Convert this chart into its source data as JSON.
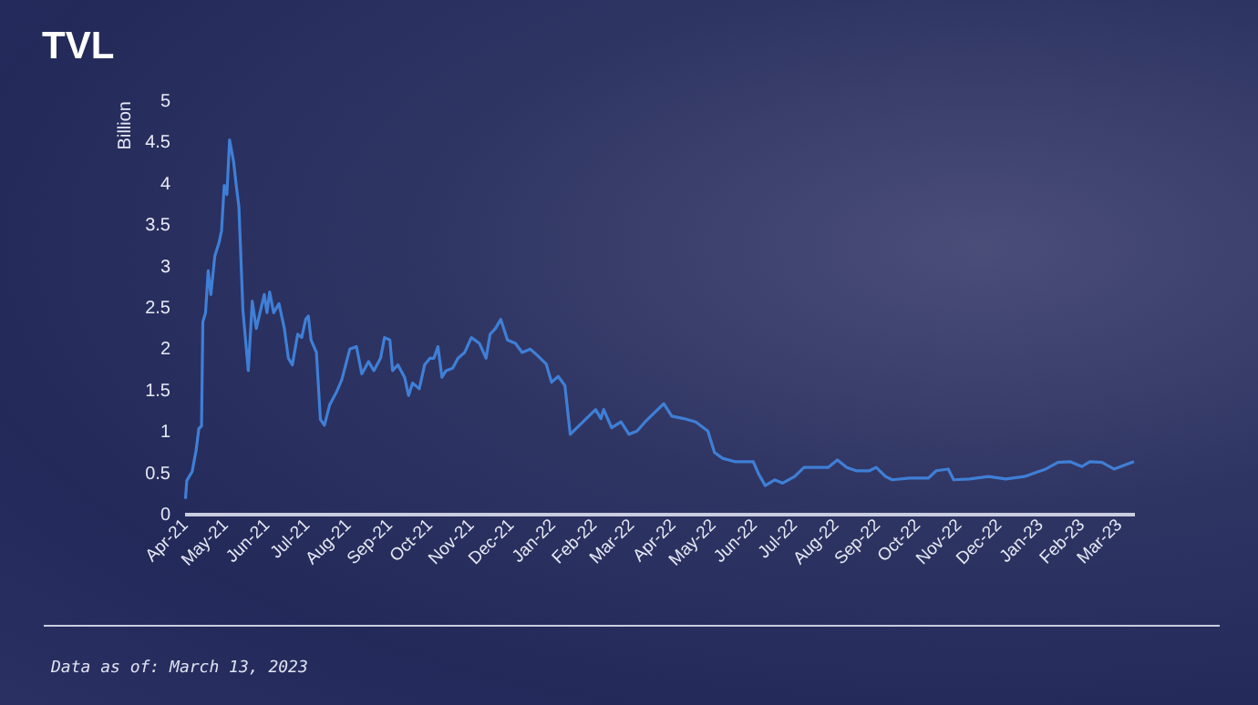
{
  "chart_data": {
    "type": "line",
    "title": "TVL",
    "ylabel": "Billion",
    "annotations": [
      "Data as of: March 13, 2023"
    ],
    "xlim": [
      "2021-04-01",
      "2023-03-13"
    ],
    "xticks": [
      {
        "value": "2021-04-01",
        "label": "Apr-21"
      },
      {
        "value": "2021-05-01",
        "label": "May-21"
      },
      {
        "value": "2021-06-01",
        "label": "Jun-21"
      },
      {
        "value": "2021-07-01",
        "label": "Jul-21"
      },
      {
        "value": "2021-08-01",
        "label": "Aug-21"
      },
      {
        "value": "2021-09-01",
        "label": "Sep-21"
      },
      {
        "value": "2021-10-01",
        "label": "Oct-21"
      },
      {
        "value": "2021-11-01",
        "label": "Nov-21"
      },
      {
        "value": "2021-12-01",
        "label": "Dec-21"
      },
      {
        "value": "2022-01-01",
        "label": "Jan-22"
      },
      {
        "value": "2022-02-01",
        "label": "Feb-22"
      },
      {
        "value": "2022-03-01",
        "label": "Mar-22"
      },
      {
        "value": "2022-04-01",
        "label": "Apr-22"
      },
      {
        "value": "2022-05-01",
        "label": "May-22"
      },
      {
        "value": "2022-06-01",
        "label": "Jun-22"
      },
      {
        "value": "2022-07-01",
        "label": "Jul-22"
      },
      {
        "value": "2022-08-01",
        "label": "Aug-22"
      },
      {
        "value": "2022-09-01",
        "label": "Sep-22"
      },
      {
        "value": "2022-10-01",
        "label": "Oct-22"
      },
      {
        "value": "2022-11-01",
        "label": "Nov-22"
      },
      {
        "value": "2022-12-01",
        "label": "Dec-22"
      },
      {
        "value": "2023-01-01",
        "label": "Jan-23"
      },
      {
        "value": "2023-02-01",
        "label": "Feb-23"
      },
      {
        "value": "2023-03-01",
        "label": "Mar-23"
      }
    ],
    "ylim": [
      0,
      5
    ],
    "yticks": [
      0,
      0.5,
      1,
      1.5,
      2,
      2.5,
      3,
      3.5,
      4,
      4.5,
      5
    ],
    "grid": false,
    "marker": "none",
    "line_style": "solid",
    "x": [
      "2021-04-02",
      "2021-04-03",
      "2021-04-07",
      "2021-04-10",
      "2021-04-12",
      "2021-04-14",
      "2021-04-15",
      "2021-04-17",
      "2021-04-19",
      "2021-04-21",
      "2021-04-24",
      "2021-04-27",
      "2021-04-29",
      "2021-05-01",
      "2021-05-03",
      "2021-05-05",
      "2021-05-08",
      "2021-05-10",
      "2021-05-12",
      "2021-05-15",
      "2021-05-19",
      "2021-05-22",
      "2021-05-25",
      "2021-05-31",
      "2021-06-02",
      "2021-06-04",
      "2021-06-07",
      "2021-06-11",
      "2021-06-15",
      "2021-06-18",
      "2021-06-21",
      "2021-06-25",
      "2021-06-28",
      "2021-07-01",
      "2021-07-03",
      "2021-07-05",
      "2021-07-09",
      "2021-07-12",
      "2021-07-15",
      "2021-07-19",
      "2021-07-24",
      "2021-07-28",
      "2021-08-03",
      "2021-08-08",
      "2021-08-12",
      "2021-08-17",
      "2021-08-21",
      "2021-08-26",
      "2021-08-29",
      "2021-09-02",
      "2021-09-04",
      "2021-09-08",
      "2021-09-13",
      "2021-09-16",
      "2021-09-19",
      "2021-09-24",
      "2021-09-28",
      "2021-10-02",
      "2021-10-05",
      "2021-10-08",
      "2021-10-11",
      "2021-10-14",
      "2021-10-19",
      "2021-10-23",
      "2021-10-28",
      "2021-11-02",
      "2021-11-08",
      "2021-11-13",
      "2021-11-16",
      "2021-11-20",
      "2021-11-24",
      "2021-11-29",
      "2021-12-05",
      "2021-12-10",
      "2021-12-16",
      "2021-12-21",
      "2021-12-28",
      "2022-01-01",
      "2022-01-06",
      "2022-01-11",
      "2022-01-15",
      "2022-01-20",
      "2022-01-27",
      "2022-02-03",
      "2022-02-07",
      "2022-02-09",
      "2022-02-15",
      "2022-02-22",
      "2022-02-28",
      "2022-03-06",
      "2022-03-12",
      "2022-03-19",
      "2022-03-26",
      "2022-04-01",
      "2022-04-10",
      "2022-04-19",
      "2022-04-28",
      "2022-05-03",
      "2022-05-09",
      "2022-05-18",
      "2022-05-25",
      "2022-06-01",
      "2022-06-05",
      "2022-06-10",
      "2022-06-17",
      "2022-06-23",
      "2022-07-02",
      "2022-07-09",
      "2022-07-18",
      "2022-07-27",
      "2022-08-03",
      "2022-08-10",
      "2022-08-17",
      "2022-08-27",
      "2022-09-01",
      "2022-09-08",
      "2022-09-13",
      "2022-09-26",
      "2022-10-10",
      "2022-10-16",
      "2022-10-25",
      "2022-10-29",
      "2022-11-10",
      "2022-11-24",
      "2022-12-07",
      "2022-12-21",
      "2022-12-30",
      "2023-01-06",
      "2023-01-15",
      "2023-01-24",
      "2023-02-02",
      "2023-02-08",
      "2023-02-17",
      "2023-02-26",
      "2023-03-13"
    ],
    "series": [
      {
        "color": "#3f7fd6",
        "values": [
          0.18,
          0.4,
          0.51,
          0.77,
          1.03,
          1.06,
          2.32,
          2.43,
          2.94,
          2.65,
          3.12,
          3.27,
          3.42,
          3.97,
          3.86,
          4.52,
          4.26,
          3.97,
          3.71,
          2.46,
          1.73,
          2.57,
          2.24,
          2.65,
          2.43,
          2.68,
          2.43,
          2.54,
          2.24,
          1.88,
          1.8,
          2.17,
          2.13,
          2.35,
          2.39,
          2.1,
          1.95,
          1.14,
          1.07,
          1.32,
          1.47,
          1.62,
          1.99,
          2.02,
          1.69,
          1.84,
          1.73,
          1.88,
          2.13,
          2.1,
          1.73,
          1.8,
          1.65,
          1.43,
          1.58,
          1.51,
          1.8,
          1.88,
          1.88,
          2.02,
          1.65,
          1.73,
          1.76,
          1.88,
          1.95,
          2.13,
          2.06,
          1.88,
          2.17,
          2.24,
          2.35,
          2.1,
          2.06,
          1.95,
          1.99,
          1.92,
          1.81,
          1.59,
          1.66,
          1.55,
          0.96,
          1.04,
          1.15,
          1.26,
          1.15,
          1.26,
          1.04,
          1.11,
          0.96,
          1.0,
          1.11,
          1.22,
          1.33,
          1.18,
          1.15,
          1.11,
          1.0,
          0.74,
          0.67,
          0.63,
          0.63,
          0.63,
          0.48,
          0.34,
          0.41,
          0.37,
          0.45,
          0.56,
          0.56,
          0.56,
          0.65,
          0.56,
          0.52,
          0.52,
          0.56,
          0.45,
          0.41,
          0.43,
          0.43,
          0.52,
          0.54,
          0.41,
          0.42,
          0.45,
          0.42,
          0.45,
          0.5,
          0.54,
          0.62,
          0.63,
          0.57,
          0.63,
          0.62,
          0.54,
          0.63
        ]
      }
    ]
  }
}
